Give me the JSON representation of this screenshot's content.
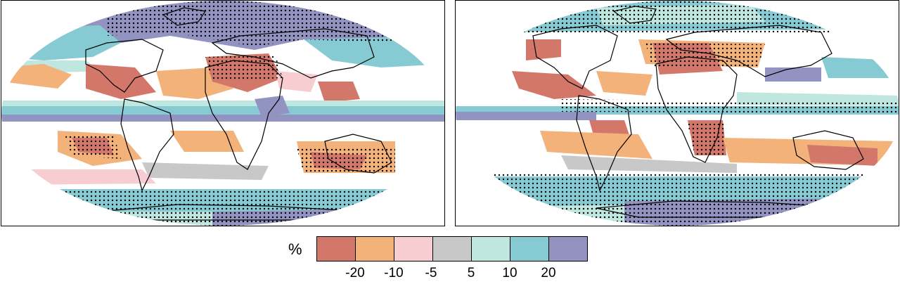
{
  "legend": {
    "unit": "%",
    "colors": [
      "#d4776b",
      "#f2b27a",
      "#f8cdd2",
      "#c8c8c8",
      "#bfe6df",
      "#86cbd4",
      "#9393c2"
    ],
    "ticks": [
      "-20",
      "-10",
      "-5",
      "5",
      "10",
      "20"
    ]
  },
  "maps": [
    {
      "panel": "left",
      "scenario_label": ""
    },
    {
      "panel": "right",
      "scenario_label": ""
    }
  ],
  "land_color": "#000000",
  "stipple_color": "#000000"
}
